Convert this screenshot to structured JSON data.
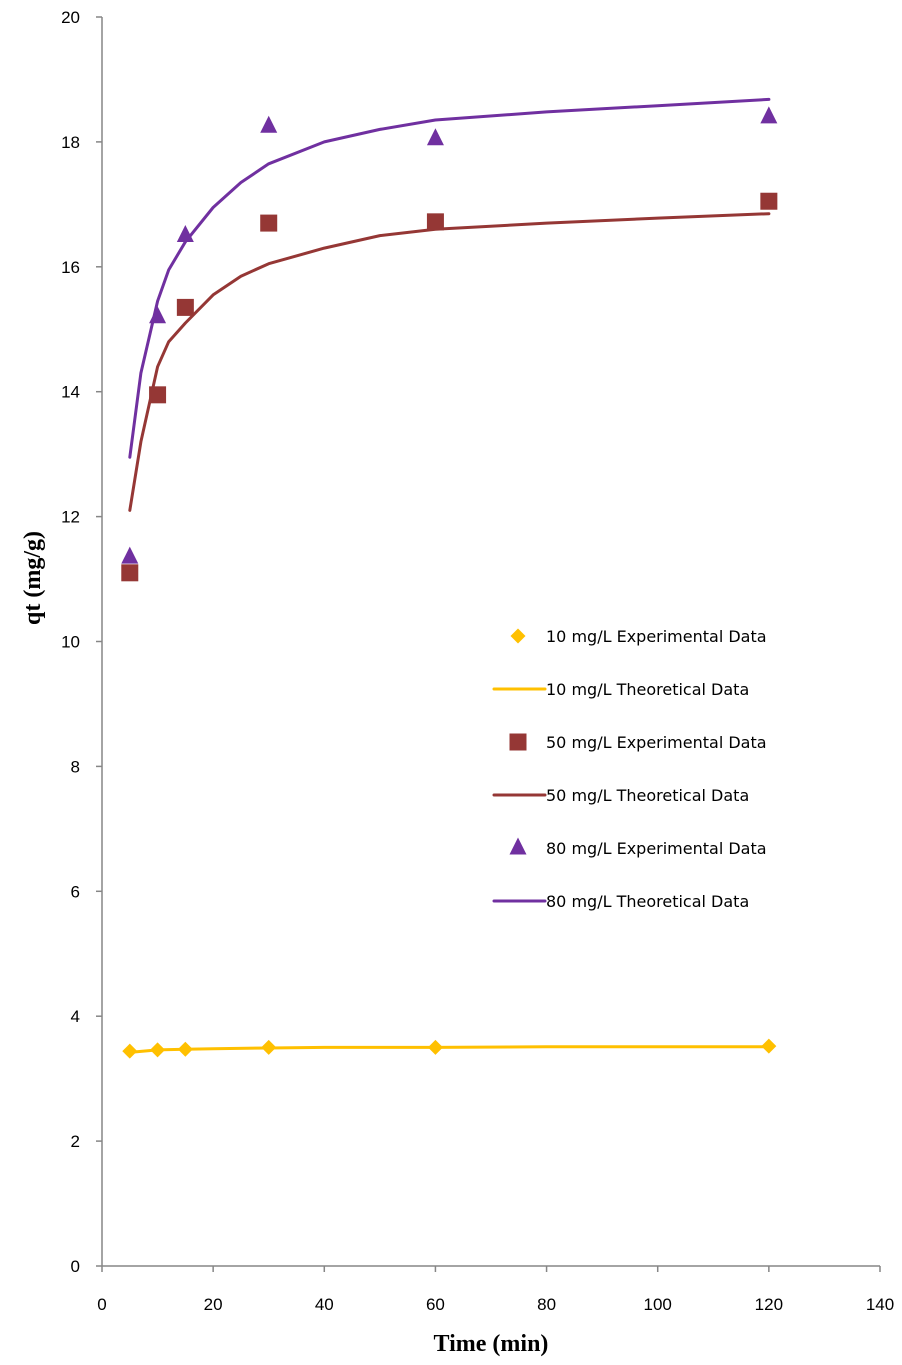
{
  "chart_data": {
    "type": "scatter",
    "title": "",
    "xlabel": "Time (min)",
    "ylabel": "qt (mg/g)",
    "xlim": [
      0,
      140
    ],
    "ylim": [
      0,
      20
    ],
    "xticks": [
      0,
      20,
      40,
      60,
      80,
      100,
      120,
      140
    ],
    "yticks": [
      0,
      2,
      4,
      6,
      8,
      10,
      12,
      14,
      16,
      18,
      20
    ],
    "grid": false,
    "legend_position": "center-right",
    "series": [
      {
        "name": "10 mg/L Experimental Data",
        "kind": "markers",
        "marker": "diamond",
        "color": "#FFC000",
        "x": [
          5,
          10,
          15,
          30,
          60,
          120
        ],
        "y": [
          3.44,
          3.46,
          3.47,
          3.5,
          3.5,
          3.52
        ]
      },
      {
        "name": "10 mg/L Theoretical Data",
        "kind": "line",
        "color": "#FFC000",
        "x": [
          5,
          10,
          15,
          20,
          30,
          40,
          60,
          80,
          100,
          120
        ],
        "y": [
          3.42,
          3.46,
          3.47,
          3.48,
          3.49,
          3.5,
          3.5,
          3.51,
          3.51,
          3.51
        ]
      },
      {
        "name": "50 mg/L Experimental Data",
        "kind": "markers",
        "marker": "square",
        "color": "#953735",
        "x": [
          5,
          10,
          15,
          30,
          60,
          120
        ],
        "y": [
          11.1,
          13.95,
          15.35,
          16.7,
          16.72,
          17.05
        ]
      },
      {
        "name": "50 mg/L Theoretical Data",
        "kind": "line",
        "color": "#953735",
        "x": [
          5,
          7,
          10,
          12,
          15,
          20,
          25,
          30,
          40,
          50,
          60,
          80,
          100,
          120
        ],
        "y": [
          12.1,
          13.2,
          14.4,
          14.8,
          15.1,
          15.55,
          15.85,
          16.05,
          16.3,
          16.5,
          16.6,
          16.7,
          16.78,
          16.85
        ]
      },
      {
        "name": "80 mg/L Experimental Data",
        "kind": "markers",
        "marker": "triangle",
        "color": "#7030A0",
        "x": [
          5,
          10,
          15,
          30,
          60,
          120
        ],
        "y": [
          11.35,
          15.2,
          16.5,
          18.25,
          18.05,
          18.4
        ]
      },
      {
        "name": "80 mg/L Theoretical Data",
        "kind": "line",
        "color": "#7030A0",
        "x": [
          5,
          7,
          10,
          12,
          15,
          20,
          25,
          30,
          40,
          50,
          60,
          80,
          100,
          120
        ],
        "y": [
          12.95,
          14.3,
          15.45,
          15.95,
          16.4,
          16.95,
          17.35,
          17.65,
          18.0,
          18.2,
          18.35,
          18.48,
          18.58,
          18.68
        ]
      }
    ]
  }
}
